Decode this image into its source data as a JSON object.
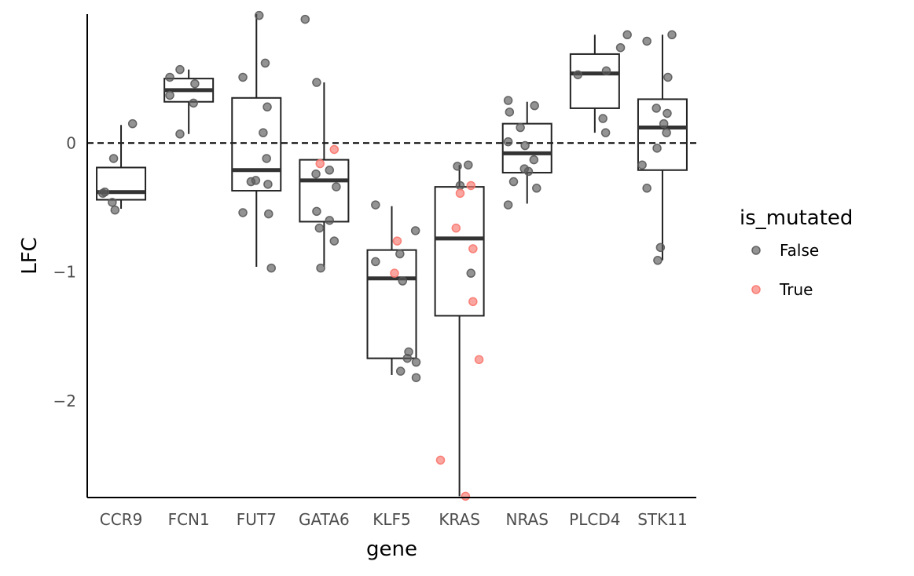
{
  "chart_data": {
    "type": "box",
    "xlabel": "gene",
    "ylabel": "LFC",
    "categories": [
      "CCR9",
      "FCN1",
      "FUT7",
      "GATA6",
      "KLF5",
      "KRAS",
      "NRAS",
      "PLCD4",
      "STK11"
    ],
    "yticks": [
      {
        "value": -2,
        "label": "−2"
      },
      {
        "value": -1,
        "label": "−1"
      },
      {
        "value": 0,
        "label": "0"
      }
    ],
    "ylim": [
      -2.75,
      1.0
    ],
    "reference_line": {
      "y": 0,
      "style": "dashed"
    },
    "grid": false,
    "legend": {
      "title": "is_mutated",
      "placement": "right",
      "entries": [
        {
          "label": "False",
          "color": "#595959"
        },
        {
          "label": "True",
          "color": "#f8766d"
        }
      ]
    },
    "boxes": [
      {
        "category": "CCR9",
        "q1": -0.44,
        "median": -0.38,
        "q3": -0.19,
        "whisker_low": -0.51,
        "whisker_high": 0.14
      },
      {
        "category": "FCN1",
        "q1": 0.32,
        "median": 0.41,
        "q3": 0.5,
        "whisker_low": 0.07,
        "whisker_high": 0.57
      },
      {
        "category": "FUT7",
        "q1": -0.37,
        "median": -0.21,
        "q3": 0.35,
        "whisker_low": -0.96,
        "whisker_high": 1.0
      },
      {
        "category": "GATA6",
        "q1": -0.61,
        "median": -0.29,
        "q3": -0.13,
        "whisker_low": -0.96,
        "whisker_high": 0.47
      },
      {
        "category": "KLF5",
        "q1": -1.67,
        "median": -1.05,
        "q3": -0.83,
        "whisker_low": -1.8,
        "whisker_high": -0.49
      },
      {
        "category": "KRAS",
        "q1": -1.34,
        "median": -0.74,
        "q3": -0.34,
        "whisker_low": -2.74,
        "whisker_high": -0.17
      },
      {
        "category": "NRAS",
        "q1": -0.23,
        "median": -0.08,
        "q3": 0.15,
        "whisker_low": -0.47,
        "whisker_high": 0.32
      },
      {
        "category": "PLCD4",
        "q1": 0.27,
        "median": 0.54,
        "q3": 0.69,
        "whisker_low": 0.08,
        "whisker_high": 0.84
      },
      {
        "category": "STK11",
        "q1": -0.21,
        "median": 0.12,
        "q3": 0.34,
        "whisker_low": -0.91,
        "whisker_high": 0.84
      }
    ],
    "points": [
      {
        "category": "CCR9",
        "dx": -0.27,
        "y": -0.39,
        "mutated": false
      },
      {
        "category": "CCR9",
        "dx": -0.24,
        "y": -0.38,
        "mutated": false
      },
      {
        "category": "CCR9",
        "dx": -0.13,
        "y": -0.46,
        "mutated": false
      },
      {
        "category": "CCR9",
        "dx": -0.09,
        "y": -0.52,
        "mutated": false
      },
      {
        "category": "CCR9",
        "dx": -0.11,
        "y": -0.12,
        "mutated": false
      },
      {
        "category": "CCR9",
        "dx": 0.17,
        "y": 0.15,
        "mutated": false
      },
      {
        "category": "FCN1",
        "dx": -0.28,
        "y": 0.51,
        "mutated": false
      },
      {
        "category": "FCN1",
        "dx": -0.28,
        "y": 0.37,
        "mutated": false
      },
      {
        "category": "FCN1",
        "dx": -0.13,
        "y": 0.57,
        "mutated": false
      },
      {
        "category": "FCN1",
        "dx": 0.09,
        "y": 0.46,
        "mutated": false
      },
      {
        "category": "FCN1",
        "dx": 0.07,
        "y": 0.31,
        "mutated": false
      },
      {
        "category": "FCN1",
        "dx": -0.13,
        "y": 0.07,
        "mutated": false
      },
      {
        "category": "FUT7",
        "dx": 0.04,
        "y": 0.99,
        "mutated": false
      },
      {
        "category": "FUT7",
        "dx": 0.13,
        "y": 0.62,
        "mutated": false
      },
      {
        "category": "FUT7",
        "dx": -0.2,
        "y": 0.51,
        "mutated": false
      },
      {
        "category": "FUT7",
        "dx": 0.16,
        "y": 0.28,
        "mutated": false
      },
      {
        "category": "FUT7",
        "dx": 0.1,
        "y": 0.08,
        "mutated": false
      },
      {
        "category": "FUT7",
        "dx": 0.15,
        "y": -0.12,
        "mutated": false
      },
      {
        "category": "FUT7",
        "dx": -0.08,
        "y": -0.3,
        "mutated": false
      },
      {
        "category": "FUT7",
        "dx": -0.01,
        "y": -0.29,
        "mutated": false
      },
      {
        "category": "FUT7",
        "dx": 0.17,
        "y": -0.32,
        "mutated": false
      },
      {
        "category": "FUT7",
        "dx": -0.2,
        "y": -0.54,
        "mutated": false
      },
      {
        "category": "FUT7",
        "dx": 0.18,
        "y": -0.55,
        "mutated": false
      },
      {
        "category": "FUT7",
        "dx": 0.22,
        "y": -0.97,
        "mutated": false
      },
      {
        "category": "GATA6",
        "dx": -0.28,
        "y": 0.96,
        "mutated": false
      },
      {
        "category": "GATA6",
        "dx": -0.11,
        "y": 0.47,
        "mutated": false
      },
      {
        "category": "GATA6",
        "dx": 0.15,
        "y": -0.05,
        "mutated": true
      },
      {
        "category": "GATA6",
        "dx": -0.06,
        "y": -0.16,
        "mutated": true
      },
      {
        "category": "GATA6",
        "dx": 0.08,
        "y": -0.21,
        "mutated": false
      },
      {
        "category": "GATA6",
        "dx": -0.12,
        "y": -0.24,
        "mutated": false
      },
      {
        "category": "GATA6",
        "dx": 0.18,
        "y": -0.34,
        "mutated": false
      },
      {
        "category": "GATA6",
        "dx": -0.11,
        "y": -0.53,
        "mutated": false
      },
      {
        "category": "GATA6",
        "dx": 0.08,
        "y": -0.6,
        "mutated": false
      },
      {
        "category": "GATA6",
        "dx": -0.07,
        "y": -0.66,
        "mutated": false
      },
      {
        "category": "GATA6",
        "dx": 0.15,
        "y": -0.76,
        "mutated": false
      },
      {
        "category": "GATA6",
        "dx": -0.05,
        "y": -0.97,
        "mutated": false
      },
      {
        "category": "KLF5",
        "dx": -0.24,
        "y": -0.48,
        "mutated": false
      },
      {
        "category": "KLF5",
        "dx": 0.35,
        "y": -0.68,
        "mutated": false
      },
      {
        "category": "KLF5",
        "dx": 0.08,
        "y": -0.76,
        "mutated": true
      },
      {
        "category": "KLF5",
        "dx": 0.12,
        "y": -0.86,
        "mutated": false
      },
      {
        "category": "KLF5",
        "dx": -0.24,
        "y": -0.92,
        "mutated": false
      },
      {
        "category": "KLF5",
        "dx": 0.04,
        "y": -1.01,
        "mutated": true
      },
      {
        "category": "KLF5",
        "dx": 0.16,
        "y": -1.07,
        "mutated": false
      },
      {
        "category": "KLF5",
        "dx": 0.25,
        "y": -1.62,
        "mutated": false
      },
      {
        "category": "KLF5",
        "dx": 0.23,
        "y": -1.67,
        "mutated": false
      },
      {
        "category": "KLF5",
        "dx": 0.36,
        "y": -1.7,
        "mutated": false
      },
      {
        "category": "KLF5",
        "dx": 0.13,
        "y": -1.77,
        "mutated": false
      },
      {
        "category": "KLF5",
        "dx": 0.36,
        "y": -1.82,
        "mutated": false
      },
      {
        "category": "KRAS",
        "dx": -0.03,
        "y": -0.18,
        "mutated": false
      },
      {
        "category": "KRAS",
        "dx": 0.13,
        "y": -0.17,
        "mutated": false
      },
      {
        "category": "KRAS",
        "dx": 0.01,
        "y": -0.33,
        "mutated": false
      },
      {
        "category": "KRAS",
        "dx": 0.17,
        "y": -0.33,
        "mutated": true
      },
      {
        "category": "KRAS",
        "dx": 0.01,
        "y": -0.39,
        "mutated": true
      },
      {
        "category": "KRAS",
        "dx": -0.05,
        "y": -0.66,
        "mutated": true
      },
      {
        "category": "KRAS",
        "dx": 0.2,
        "y": -0.82,
        "mutated": true
      },
      {
        "category": "KRAS",
        "dx": 0.17,
        "y": -1.01,
        "mutated": false
      },
      {
        "category": "KRAS",
        "dx": 0.2,
        "y": -1.23,
        "mutated": true
      },
      {
        "category": "KRAS",
        "dx": 0.29,
        "y": -1.68,
        "mutated": true
      },
      {
        "category": "KRAS",
        "dx": -0.28,
        "y": -2.46,
        "mutated": true
      },
      {
        "category": "KRAS",
        "dx": 0.09,
        "y": -2.74,
        "mutated": true
      },
      {
        "category": "NRAS",
        "dx": -0.28,
        "y": 0.33,
        "mutated": false
      },
      {
        "category": "NRAS",
        "dx": -0.26,
        "y": 0.24,
        "mutated": false
      },
      {
        "category": "NRAS",
        "dx": 0.11,
        "y": 0.29,
        "mutated": false
      },
      {
        "category": "NRAS",
        "dx": -0.1,
        "y": 0.12,
        "mutated": false
      },
      {
        "category": "NRAS",
        "dx": -0.28,
        "y": 0.01,
        "mutated": false
      },
      {
        "category": "NRAS",
        "dx": -0.03,
        "y": -0.02,
        "mutated": false
      },
      {
        "category": "NRAS",
        "dx": 0.1,
        "y": -0.13,
        "mutated": false
      },
      {
        "category": "NRAS",
        "dx": -0.04,
        "y": -0.2,
        "mutated": false
      },
      {
        "category": "NRAS",
        "dx": 0.02,
        "y": -0.22,
        "mutated": false
      },
      {
        "category": "NRAS",
        "dx": -0.2,
        "y": -0.3,
        "mutated": false
      },
      {
        "category": "NRAS",
        "dx": 0.14,
        "y": -0.35,
        "mutated": false
      },
      {
        "category": "NRAS",
        "dx": -0.28,
        "y": -0.48,
        "mutated": false
      },
      {
        "category": "PLCD4",
        "dx": 0.48,
        "y": 0.84,
        "mutated": false
      },
      {
        "category": "PLCD4",
        "dx": 0.38,
        "y": 0.74,
        "mutated": false
      },
      {
        "category": "PLCD4",
        "dx": -0.25,
        "y": 0.53,
        "mutated": false
      },
      {
        "category": "PLCD4",
        "dx": 0.17,
        "y": 0.56,
        "mutated": false
      },
      {
        "category": "PLCD4",
        "dx": 0.12,
        "y": 0.19,
        "mutated": false
      },
      {
        "category": "PLCD4",
        "dx": 0.16,
        "y": 0.08,
        "mutated": false
      },
      {
        "category": "STK11",
        "dx": -0.23,
        "y": 0.79,
        "mutated": false
      },
      {
        "category": "STK11",
        "dx": 0.14,
        "y": 0.84,
        "mutated": false
      },
      {
        "category": "STK11",
        "dx": 0.08,
        "y": 0.51,
        "mutated": false
      },
      {
        "category": "STK11",
        "dx": -0.09,
        "y": 0.27,
        "mutated": false
      },
      {
        "category": "STK11",
        "dx": 0.07,
        "y": 0.23,
        "mutated": false
      },
      {
        "category": "STK11",
        "dx": 0.02,
        "y": 0.15,
        "mutated": false
      },
      {
        "category": "STK11",
        "dx": -0.08,
        "y": -0.04,
        "mutated": false
      },
      {
        "category": "STK11",
        "dx": -0.3,
        "y": -0.17,
        "mutated": false
      },
      {
        "category": "STK11",
        "dx": 0.06,
        "y": 0.08,
        "mutated": false
      },
      {
        "category": "STK11",
        "dx": -0.23,
        "y": -0.35,
        "mutated": false
      },
      {
        "category": "STK11",
        "dx": -0.03,
        "y": -0.81,
        "mutated": false
      },
      {
        "category": "STK11",
        "dx": -0.07,
        "y": -0.91,
        "mutated": false
      }
    ]
  }
}
